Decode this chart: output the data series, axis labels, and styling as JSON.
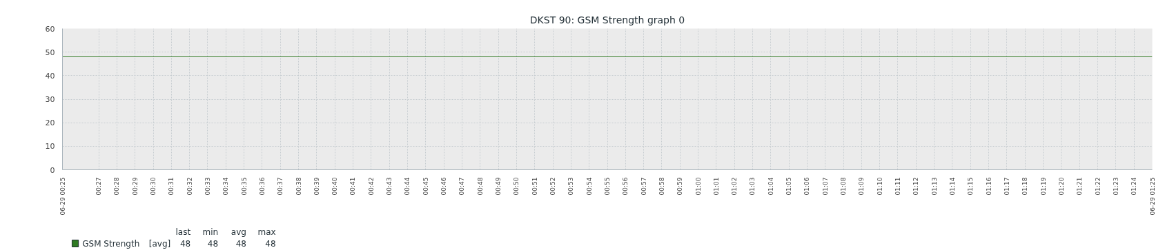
{
  "chart_data": {
    "type": "line",
    "title": "DKST 90: GSM Strength graph 0",
    "x": [
      0.4167,
      1.4167
    ],
    "series": [
      {
        "name": "GSM Strength",
        "color": "#2f7a22",
        "values": [
          48,
          48
        ]
      }
    ],
    "xlim": [
      0.4167,
      1.4167
    ],
    "xticks": [
      {
        "value": 0.4167,
        "label": "06-29 00:25"
      },
      {
        "value": 0.45,
        "label": "00:27"
      },
      {
        "value": 0.4667,
        "label": "00:28"
      },
      {
        "value": 0.4833,
        "label": "00:29"
      },
      {
        "value": 0.5,
        "label": "00:30"
      },
      {
        "value": 0.5167,
        "label": "00:31"
      },
      {
        "value": 0.5333,
        "label": "00:32"
      },
      {
        "value": 0.55,
        "label": "00:33"
      },
      {
        "value": 0.5667,
        "label": "00:34"
      },
      {
        "value": 0.5833,
        "label": "00:35"
      },
      {
        "value": 0.6,
        "label": "00:36"
      },
      {
        "value": 0.6167,
        "label": "00:37"
      },
      {
        "value": 0.6333,
        "label": "00:38"
      },
      {
        "value": 0.65,
        "label": "00:39"
      },
      {
        "value": 0.6667,
        "label": "00:40"
      },
      {
        "value": 0.6833,
        "label": "00:41"
      },
      {
        "value": 0.7,
        "label": "00:42"
      },
      {
        "value": 0.7167,
        "label": "00:43"
      },
      {
        "value": 0.7333,
        "label": "00:44"
      },
      {
        "value": 0.75,
        "label": "00:45"
      },
      {
        "value": 0.7667,
        "label": "00:46"
      },
      {
        "value": 0.7833,
        "label": "00:47"
      },
      {
        "value": 0.8,
        "label": "00:48"
      },
      {
        "value": 0.8167,
        "label": "00:49"
      },
      {
        "value": 0.8333,
        "label": "00:50"
      },
      {
        "value": 0.85,
        "label": "00:51"
      },
      {
        "value": 0.8667,
        "label": "00:52"
      },
      {
        "value": 0.8833,
        "label": "00:53"
      },
      {
        "value": 0.9,
        "label": "00:54"
      },
      {
        "value": 0.9167,
        "label": "00:55"
      },
      {
        "value": 0.9333,
        "label": "00:56"
      },
      {
        "value": 0.95,
        "label": "00:57"
      },
      {
        "value": 0.9667,
        "label": "00:58"
      },
      {
        "value": 0.9833,
        "label": "00:59"
      },
      {
        "value": 1,
        "label": "01:00"
      },
      {
        "value": 1.0167,
        "label": "01:01"
      },
      {
        "value": 1.0333,
        "label": "01:02"
      },
      {
        "value": 1.05,
        "label": "01:03"
      },
      {
        "value": 1.0667,
        "label": "01:04"
      },
      {
        "value": 1.0833,
        "label": "01:05"
      },
      {
        "value": 1.1,
        "label": "01:06"
      },
      {
        "value": 1.1167,
        "label": "01:07"
      },
      {
        "value": 1.1333,
        "label": "01:08"
      },
      {
        "value": 1.15,
        "label": "01:09"
      },
      {
        "value": 1.1667,
        "label": "01:10"
      },
      {
        "value": 1.1833,
        "label": "01:11"
      },
      {
        "value": 1.2,
        "label": "01:12"
      },
      {
        "value": 1.2167,
        "label": "01:13"
      },
      {
        "value": 1.2333,
        "label": "01:14"
      },
      {
        "value": 1.25,
        "label": "01:15"
      },
      {
        "value": 1.2667,
        "label": "01:16"
      },
      {
        "value": 1.2833,
        "label": "01:17"
      },
      {
        "value": 1.3,
        "label": "01:18"
      },
      {
        "value": 1.3167,
        "label": "01:19"
      },
      {
        "value": 1.3333,
        "label": "01:20"
      },
      {
        "value": 1.35,
        "label": "01:21"
      },
      {
        "value": 1.3667,
        "label": "01:22"
      },
      {
        "value": 1.3833,
        "label": "01:23"
      },
      {
        "value": 1.4,
        "label": "01:24"
      },
      {
        "value": 1.4167,
        "label": "06-29 01:25"
      }
    ],
    "ylim": [
      0,
      60
    ],
    "yticks": [
      0,
      10,
      20,
      30,
      40,
      50,
      60
    ],
    "grid": true,
    "legend": "bottom left",
    "marker": "none",
    "line_style": "solid",
    "annotations": [
      "[avg]",
      "last",
      "min",
      "avg",
      "max",
      "48",
      "48",
      "48",
      "48"
    ]
  }
}
